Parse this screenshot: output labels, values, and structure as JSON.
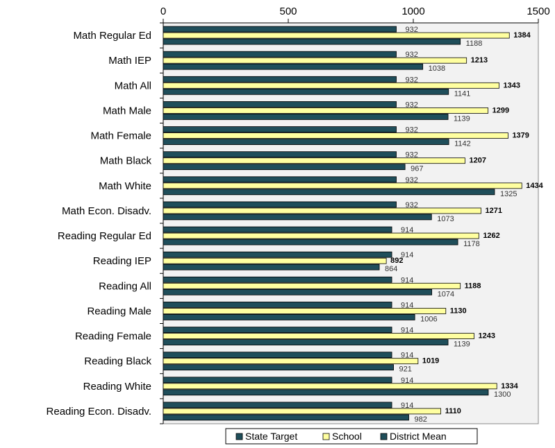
{
  "chart_data": {
    "type": "bar",
    "orientation": "horizontal",
    "categories": [
      "Math Regular Ed",
      "Math IEP",
      "Math All",
      "Math Male",
      "Math Female",
      "Math Black",
      "Math White",
      "Math Econ. Disadv.",
      "Reading Regular Ed",
      "Reading IEP",
      "Reading All",
      "Reading Male",
      "Reading Female",
      "Reading Black",
      "Reading White",
      "Reading Econ. Disadv."
    ],
    "series": [
      {
        "name": "State Target",
        "color": "#1f4e5a",
        "values": [
          932,
          932,
          932,
          932,
          932,
          932,
          932,
          932,
          914,
          914,
          914,
          914,
          914,
          914,
          914,
          914
        ]
      },
      {
        "name": "School",
        "color": "#ffffa0",
        "values": [
          1384,
          1213,
          1343,
          1299,
          1379,
          1207,
          1434,
          1271,
          1262,
          892,
          1188,
          1130,
          1243,
          1019,
          1334,
          1110
        ]
      },
      {
        "name": "District Mean",
        "color": "#1f4e5a",
        "values": [
          1188,
          1038,
          1141,
          1139,
          1142,
          967,
          1325,
          1073,
          1178,
          864,
          1074,
          1006,
          1139,
          921,
          1300,
          982
        ]
      }
    ],
    "xlim": [
      0,
      1500
    ],
    "xticks": [
      0,
      500,
      1000,
      1500
    ],
    "xtick_labels": [
      "0",
      "500",
      "1000",
      "1500"
    ],
    "value_labels": {
      "State Target": [
        "932",
        "932",
        "932",
        "932",
        "932",
        "932",
        "932",
        "932",
        "914",
        "914",
        "914",
        "914",
        "914",
        "914",
        "914",
        "914"
      ],
      "School": [
        "1384",
        "1213",
        "1343",
        "1299",
        "1379",
        "1207",
        "1434",
        "1271",
        "1262",
        "892",
        "1188",
        "1130",
        "1243",
        "1019",
        "1334",
        "1110"
      ],
      "District Mean": [
        "1188",
        "1038",
        "1141",
        "1139",
        "1142",
        "967",
        "1325",
        "1073",
        "1178",
        "864",
        "1074",
        "1006",
        "1139",
        "921",
        "1300",
        "982"
      ]
    },
    "grid": false,
    "plot_background": "#f2f2f2",
    "legend_position": "bottom"
  }
}
